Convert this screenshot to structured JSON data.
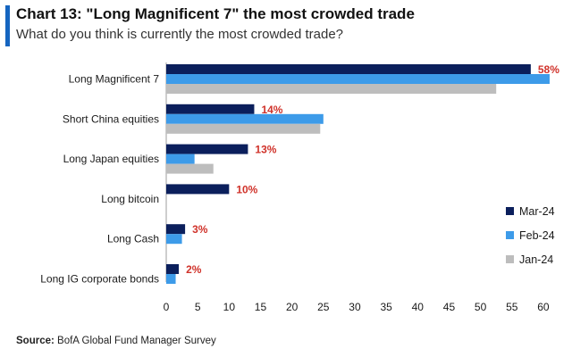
{
  "header": {
    "title": "Chart 13: \"Long Magnificent 7\" the most crowded trade",
    "subtitle": "What do you think is currently the most crowded trade?"
  },
  "source": {
    "label": "Source:",
    "text": "BofA Global Fund Manager Survey"
  },
  "colors": {
    "accent": "#1565c0",
    "mar": "#0b1f5c",
    "feb": "#3d9be9",
    "jan": "#bdbdbd",
    "value_label": "#d0322a"
  },
  "chart_data": {
    "type": "bar",
    "orientation": "horizontal",
    "categories": [
      "Long Magnificent 7",
      "Short China equities",
      "Long Japan equities",
      "Long bitcoin",
      "Long Cash",
      "Long IG corporate bonds"
    ],
    "series": [
      {
        "name": "Mar-24",
        "color_key": "mar",
        "values": [
          58,
          14,
          13,
          10,
          3,
          2
        ]
      },
      {
        "name": "Feb-24",
        "color_key": "feb",
        "values": [
          61,
          25,
          4.5,
          null,
          2.5,
          1.5
        ]
      },
      {
        "name": "Jan-24",
        "color_key": "jan",
        "values": [
          52.5,
          24.5,
          7.5,
          null,
          null,
          null
        ]
      }
    ],
    "value_labels": [
      "58%",
      "14%",
      "13%",
      "10%",
      "3%",
      "2%"
    ],
    "xlim": [
      0,
      62
    ],
    "xticks": [
      0,
      5,
      10,
      15,
      20,
      25,
      30,
      35,
      40,
      45,
      50,
      55,
      60
    ],
    "legend": [
      "Mar-24",
      "Feb-24",
      "Jan-24"
    ],
    "legend_position": "right",
    "title": "Chart 13: \"Long Magnificent 7\" the most crowded trade",
    "xlabel": "",
    "ylabel": ""
  }
}
